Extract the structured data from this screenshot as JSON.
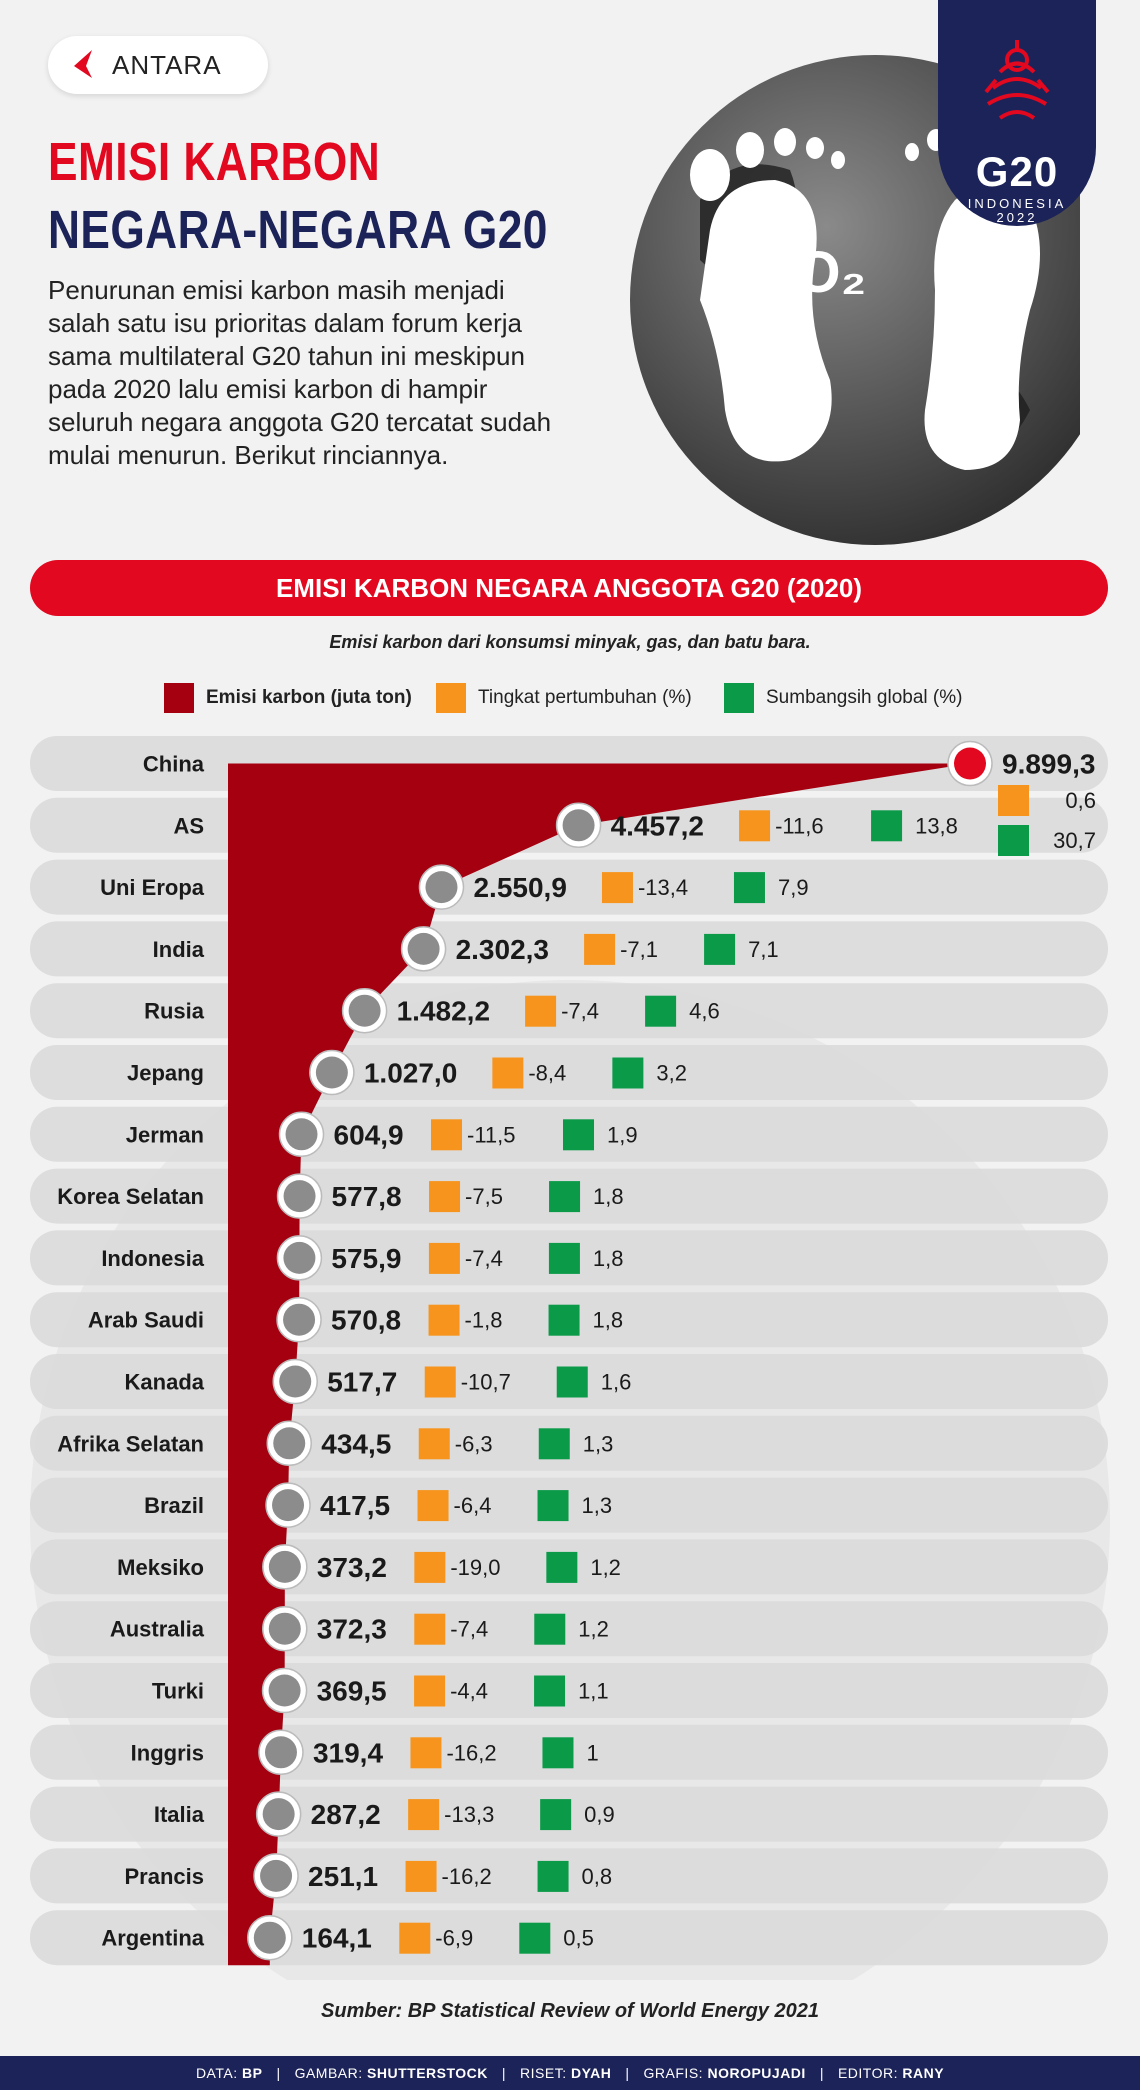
{
  "brand": {
    "logo_text": "ANTARA"
  },
  "header": {
    "title_line1": "EMISI KARBON",
    "title_line2": "NEGARA-NEGARA G20",
    "intro": "Penurunan emisi karbon masih menjadi salah satu isu prioritas dalam forum kerja sama multilateral G20 tahun ini meskipun pada 2020 lalu emisi karbon di hampir seluruh negara anggota G20 tercatat sudah mulai menurun. Berikut rinciannya.",
    "art_label": "CO₂"
  },
  "badge": {
    "title": "G20",
    "sub": "INDONESIA",
    "year": "2022"
  },
  "colors": {
    "red": "#e1081f",
    "navy": "#1c2358",
    "emission": "#a50010",
    "growth": "#f7941d",
    "share": "#0a9a48"
  },
  "chart_data": {
    "type": "bar",
    "title": "EMISI KARBON NEGARA ANGGOTA G20 (2020)",
    "subtitle": "Emisi karbon dari konsumsi minyak, gas, dan batu bara.",
    "legend": [
      "Emisi karbon (juta ton)",
      "Tingkat pertumbuhan (%)",
      "Sumbangsih global (%)"
    ],
    "categories": [
      "China",
      "AS",
      "Uni Eropa",
      "India",
      "Rusia",
      "Jepang",
      "Jerman",
      "Korea Selatan",
      "Indonesia",
      "Arab Saudi",
      "Kanada",
      "Afrika Selatan",
      "Brazil",
      "Meksiko",
      "Australia",
      "Turki",
      "Inggris",
      "Italia",
      "Prancis",
      "Argentina"
    ],
    "series": [
      {
        "name": "Emisi karbon (juta ton)",
        "values": [
          9899.3,
          4457.2,
          2550.9,
          2302.3,
          1482.2,
          1027.0,
          604.9,
          577.8,
          575.9,
          570.8,
          517.7,
          434.5,
          417.5,
          373.2,
          372.3,
          369.5,
          319.4,
          287.2,
          251.1,
          164.1
        ]
      },
      {
        "name": "Tingkat pertumbuhan (%)",
        "values": [
          0.6,
          -11.6,
          -13.4,
          -7.1,
          -7.4,
          -8.4,
          -11.5,
          -7.5,
          -7.4,
          -1.8,
          -10.7,
          -6.3,
          -6.4,
          -19.0,
          -7.4,
          -4.4,
          -16.2,
          -13.3,
          -16.2,
          -6.9
        ]
      },
      {
        "name": "Sumbangsih global (%)",
        "values": [
          30.7,
          13.8,
          7.9,
          7.1,
          4.6,
          3.2,
          1.9,
          1.8,
          1.8,
          1.8,
          1.6,
          1.3,
          1.3,
          1.2,
          1.2,
          1.1,
          1,
          0.9,
          0.8,
          0.5
        ]
      }
    ],
    "value_labels": [
      "9.899,3",
      "4.457,2",
      "2.550,9",
      "2.302,3",
      "1.482,2",
      "1.027,0",
      "604,9",
      "577,8",
      "575,9",
      "570,8",
      "517,7",
      "434,5",
      "417,5",
      "373,2",
      "372,3",
      "369,5",
      "319,4",
      "287,2",
      "251,1",
      "164,1"
    ],
    "growth_labels": [
      "0,6",
      "-11,6",
      "-13,4",
      "-7,1",
      "-7,4",
      "-8,4",
      "-11,5",
      "-7,5",
      "-7,4",
      "-1,8",
      "-10,7",
      "-6,3",
      "-6,4",
      "-19,0",
      "-7,4",
      "-4,4",
      "-16,2",
      "-13,3",
      "-16,2",
      "-6,9"
    ],
    "share_labels": [
      "30,7",
      "13,8",
      "7,9",
      "7,1",
      "4,6",
      "3,2",
      "1,9",
      "1,8",
      "1,8",
      "1,8",
      "1,6",
      "1,3",
      "1,3",
      "1,2",
      "1,2",
      "1,1",
      "1",
      "0,9",
      "0,8",
      "0,5"
    ]
  },
  "source": "Sumber: BP Statistical Review of World Energy 2021",
  "footer": [
    {
      "key": "DATA:",
      "value": "BP"
    },
    {
      "key": "GAMBAR:",
      "value": "SHUTTERSTOCK"
    },
    {
      "key": "RISET:",
      "value": "DYAH"
    },
    {
      "key": "GRAFIS:",
      "value": "NOROPUJADI"
    },
    {
      "key": "EDITOR:",
      "value": "RANY"
    }
  ]
}
